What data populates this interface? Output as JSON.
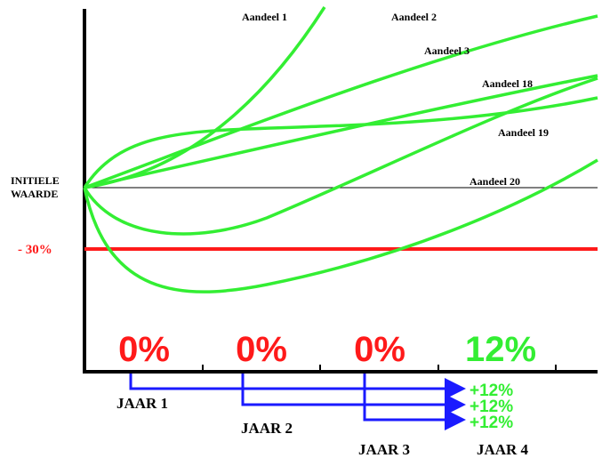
{
  "curves": {
    "labels": [
      "Aandeel 1",
      "Aandeel 2",
      "Aandeel 3",
      "Aandeel 18",
      "Aandeel 19",
      "Aandeel 20"
    ]
  },
  "y_axis": {
    "initial_value": [
      "INITIELE",
      "WAARDE"
    ],
    "threshold": "- 30%"
  },
  "returns": [
    "0%",
    "0%",
    "0%",
    "12%"
  ],
  "years": [
    "JAAR 1",
    "JAAR 2",
    "JAAR 3",
    "JAAR 4"
  ],
  "carried_returns": [
    "+12%",
    "+12%",
    "+12%"
  ]
}
